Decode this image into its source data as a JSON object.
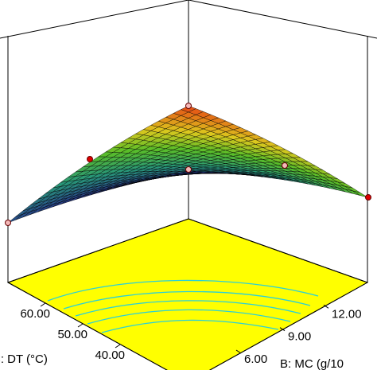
{
  "chart_data": {
    "type": "surface3d",
    "x_label": "C: DT (°C)",
    "y_label": "B: MC (g/10",
    "xlim": [
      40,
      70
    ],
    "xticks": [
      {
        "value": 60,
        "label": "60.00"
      },
      {
        "value": 50,
        "label": "50.00"
      },
      {
        "value": 40,
        "label": "40.00"
      }
    ],
    "ylim": [
      6,
      15
    ],
    "yticks": [
      {
        "value": 6,
        "label": "6.00"
      },
      {
        "value": 9,
        "label": "9.00"
      },
      {
        "value": 12,
        "label": "12.00"
      }
    ],
    "floor_color": "#ffff00"
  }
}
